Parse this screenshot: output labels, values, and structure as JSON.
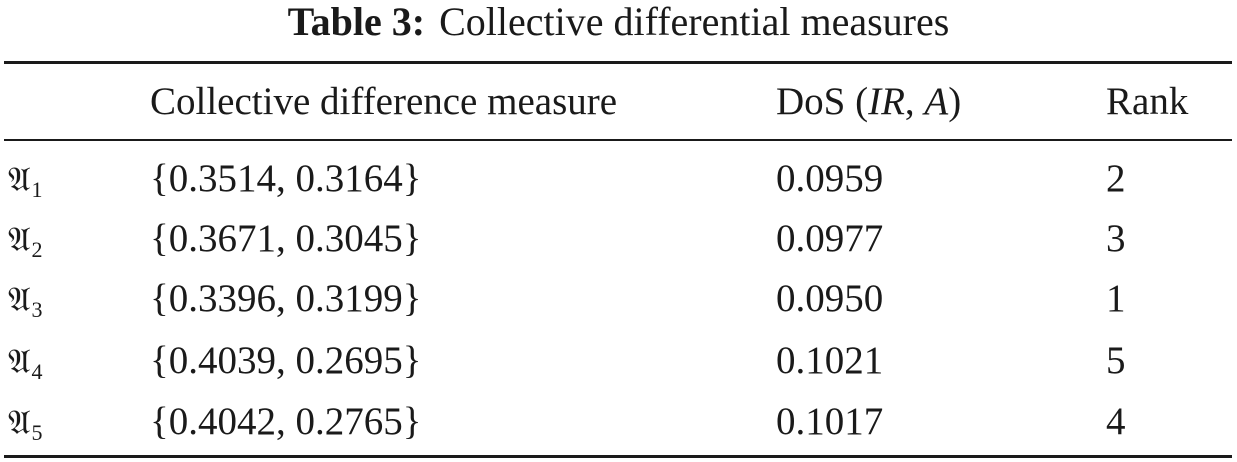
{
  "caption": {
    "label": "Table 3:",
    "text": "Collective differential measures"
  },
  "header": {
    "alternative": "",
    "measure": "Collective difference measure",
    "dos_prefix": "DoS (",
    "dos_ir": "IR",
    "dos_comma": ", ",
    "dos_a": "A",
    "dos_suffix": ")",
    "rank": "Rank"
  },
  "rows": [
    {
      "symbol": "𝔄",
      "sub": "1",
      "measure": "{0.3514, 0.3164}",
      "dos": "0.0959",
      "rank": "2"
    },
    {
      "symbol": "𝔄",
      "sub": "2",
      "measure": "{0.3671, 0.3045}",
      "dos": "0.0977",
      "rank": "3"
    },
    {
      "symbol": "𝔄",
      "sub": "3",
      "measure": "{0.3396, 0.3199}",
      "dos": "0.0950",
      "rank": "1"
    },
    {
      "symbol": "𝔄",
      "sub": "4",
      "measure": "{0.4039, 0.2695}",
      "dos": "0.1021",
      "rank": "5"
    },
    {
      "symbol": "𝔄",
      "sub": "5",
      "measure": "{0.4042, 0.2765}",
      "dos": "0.1017",
      "rank": "4"
    }
  ]
}
